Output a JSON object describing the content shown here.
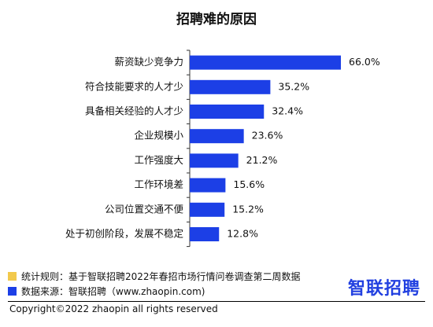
{
  "title": "招聘难的原因",
  "chart_data": {
    "type": "bar",
    "orientation": "horizontal",
    "title": "招聘难的原因",
    "categories": [
      "薪资缺少竞争力",
      "符合技能要求的人才少",
      "具备相关经验的人才少",
      "企业规模小",
      "工作强度大",
      "工作环境差",
      "公司位置交通不便",
      "处于初创阶段，发展不稳定"
    ],
    "values": [
      66.0,
      35.2,
      32.4,
      23.6,
      21.2,
      15.6,
      15.2,
      12.8
    ],
    "value_labels": [
      "66.0%",
      "35.2%",
      "32.4%",
      "23.6%",
      "21.2%",
      "15.6%",
      "15.2%",
      "12.8%"
    ],
    "xlim": [
      0,
      66.0
    ],
    "bar_color": "#1c3fe6",
    "grid": false
  },
  "footer": {
    "note1": "统计规则：基于智联招聘2022年春招市场行情问卷调查第二周数据",
    "note1_color": "#f2c94c",
    "note2": "数据来源：智联招聘（www.zhaopin.com)",
    "note2_color": "#1c3fe6",
    "copyright": "Copyright©2022 zhaopin all rights reserved",
    "brand": "智联招聘"
  }
}
